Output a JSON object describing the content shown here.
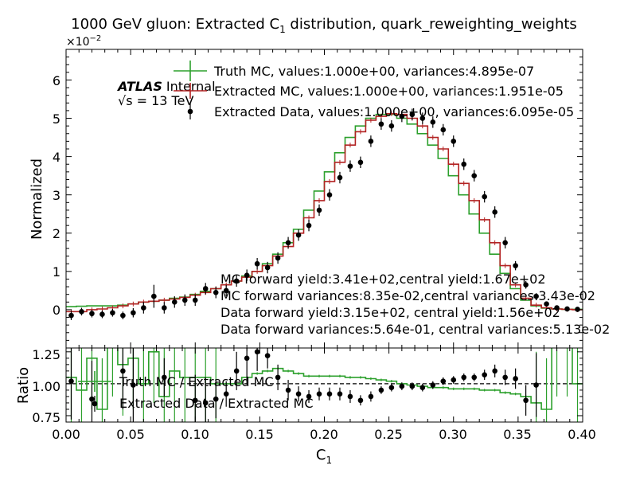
{
  "chart_data": {
    "type": "line",
    "title_pre": "1000 GeV gluon: Extracted C",
    "title_sub": "1",
    "title_post": " distribution, quark_reweighting_weights",
    "xlabel_main": "C",
    "xlabel_sub": "1",
    "ylabel_top": "Normalized",
    "ylabel_bottom": "Ratio",
    "y_multiplier_base": "×10",
    "y_multiplier_exp": "−2",
    "atlas_label": "ATLAS",
    "atlas_sub": "Internal",
    "energy_label": "√s = 13 TeV",
    "xlim": [
      0.0,
      0.4
    ],
    "ylim_top": [
      -1,
      6.8
    ],
    "ylim_bottom": [
      0.7,
      1.28
    ],
    "xticks": [
      "0.00",
      "0.05",
      "0.10",
      "0.15",
      "0.20",
      "0.25",
      "0.30",
      "0.35",
      "0.40"
    ],
    "yticks_top": [
      "0",
      "1",
      "2",
      "3",
      "4",
      "5",
      "6"
    ],
    "yticks_bottom": [
      "0.75",
      "1.00",
      "1.25"
    ],
    "ratio_reference": 1.0,
    "legend_top": {
      "truth": "Truth MC, values:1.000e+00, variances:4.895e-07",
      "extracted_mc": "Extracted MC, values:1.000e+00, variances:1.951e-05",
      "extracted_data": "Extracted Data, values:1.000e+00, variances:6.095e-05"
    },
    "legend_bottom": {
      "truth_ratio": "Truth MC / Extracted MC",
      "data_ratio": "Extracted Data / Extracted MC"
    },
    "annotations": [
      "MC forward yield:3.41e+02,central yield:1.67e+02",
      "MC forward variances:8.35e-02,central variances:3.43e-02",
      "Data forward yield:3.15e+02, central yield:1.56e+02",
      "Data forward variances:5.64e-01, central variances:5.13e-02"
    ],
    "colors": {
      "truth": "#2ca02c",
      "extracted_mc": "#b22222",
      "data": "#000000"
    },
    "bin_edges": [
      0.0,
      0.008,
      0.016,
      0.024,
      0.032,
      0.04,
      0.048,
      0.056,
      0.064,
      0.072,
      0.08,
      0.088,
      0.096,
      0.104,
      0.112,
      0.12,
      0.128,
      0.136,
      0.144,
      0.152,
      0.16,
      0.168,
      0.176,
      0.184,
      0.192,
      0.2,
      0.208,
      0.216,
      0.224,
      0.232,
      0.24,
      0.248,
      0.256,
      0.264,
      0.272,
      0.28,
      0.288,
      0.296,
      0.304,
      0.312,
      0.32,
      0.328,
      0.336,
      0.344,
      0.352,
      0.36,
      0.368,
      0.376,
      0.384,
      0.392,
      0.4
    ],
    "series": [
      {
        "name": "Truth MC, values:1.000e+00, variances:4.895e-07",
        "values": [
          0.08,
          0.09,
          0.1,
          0.1,
          0.1,
          0.12,
          0.15,
          0.2,
          0.22,
          0.25,
          0.3,
          0.33,
          0.4,
          0.48,
          0.55,
          0.65,
          0.75,
          0.88,
          1.0,
          1.2,
          1.45,
          1.75,
          2.1,
          2.6,
          3.1,
          3.6,
          4.1,
          4.5,
          4.8,
          5.0,
          5.1,
          5.1,
          5.0,
          4.85,
          4.6,
          4.3,
          3.95,
          3.5,
          3.0,
          2.5,
          2.0,
          1.45,
          0.95,
          0.55,
          0.25,
          0.1,
          0.04,
          0.02,
          0.01,
          0.01
        ]
      },
      {
        "name": "Extracted MC, values:1.000e+00, variances:1.951e-05",
        "values": [
          -0.05,
          -0.05,
          0.0,
          0.02,
          0.05,
          0.1,
          0.15,
          0.2,
          0.22,
          0.25,
          0.28,
          0.32,
          0.38,
          0.45,
          0.55,
          0.65,
          0.75,
          0.85,
          1.0,
          1.15,
          1.4,
          1.65,
          2.0,
          2.4,
          2.85,
          3.35,
          3.85,
          4.3,
          4.65,
          4.95,
          5.05,
          5.12,
          5.1,
          5.0,
          4.8,
          4.5,
          4.2,
          3.8,
          3.3,
          2.85,
          2.35,
          1.75,
          1.15,
          0.65,
          0.3,
          0.12,
          0.05,
          0.02,
          0.01,
          0.0
        ]
      },
      {
        "name": "Extracted Data, values:1.000e+00, variances:6.095e-05",
        "x": [
          0.004,
          0.012,
          0.02,
          0.028,
          0.036,
          0.044,
          0.052,
          0.06,
          0.068,
          0.076,
          0.084,
          0.092,
          0.1,
          0.108,
          0.116,
          0.124,
          0.132,
          0.14,
          0.148,
          0.156,
          0.164,
          0.172,
          0.18,
          0.188,
          0.196,
          0.204,
          0.212,
          0.22,
          0.228,
          0.236,
          0.244,
          0.252,
          0.26,
          0.268,
          0.276,
          0.284,
          0.292,
          0.3,
          0.308,
          0.316,
          0.324,
          0.332,
          0.34,
          0.348,
          0.356,
          0.364,
          0.372,
          0.38,
          0.388,
          0.396
        ],
        "values": [
          -0.15,
          -0.05,
          -0.1,
          -0.12,
          -0.08,
          -0.15,
          -0.08,
          0.05,
          0.35,
          0.05,
          0.2,
          0.25,
          0.25,
          0.55,
          0.45,
          0.5,
          0.75,
          0.9,
          1.2,
          1.1,
          1.35,
          1.75,
          1.95,
          2.2,
          2.6,
          3.0,
          3.45,
          3.75,
          3.85,
          4.4,
          4.85,
          4.8,
          5.05,
          5.1,
          5.0,
          4.9,
          4.7,
          4.4,
          3.8,
          3.5,
          2.95,
          2.55,
          1.75,
          1.15,
          0.65,
          0.35,
          0.15,
          0.05,
          0.02,
          0.01
        ],
        "errors": [
          0.12,
          0.1,
          0.1,
          0.1,
          0.1,
          0.1,
          0.12,
          0.15,
          0.3,
          0.15,
          0.15,
          0.15,
          0.15,
          0.15,
          0.15,
          0.15,
          0.15,
          0.15,
          0.15,
          0.15,
          0.15,
          0.15,
          0.15,
          0.15,
          0.15,
          0.15,
          0.15,
          0.15,
          0.15,
          0.15,
          0.15,
          0.15,
          0.15,
          0.15,
          0.15,
          0.15,
          0.15,
          0.15,
          0.15,
          0.15,
          0.15,
          0.15,
          0.15,
          0.12,
          0.1,
          0.08,
          0.06,
          0.04,
          0.03,
          0.02
        ]
      },
      {
        "name": "Truth MC / Extracted MC",
        "values": [
          1.05,
          0.95,
          1.2,
          0.8,
          1.3,
          1.15,
          1.2,
          1.0,
          1.25,
          0.9,
          1.1,
          1.05,
          1.05,
          1.05,
          1.0,
          1.0,
          1.0,
          1.05,
          1.08,
          1.1,
          1.12,
          1.1,
          1.08,
          1.06,
          1.06,
          1.06,
          1.06,
          1.05,
          1.05,
          1.04,
          1.03,
          1.02,
          1.0,
          0.99,
          0.98,
          0.97,
          0.97,
          0.96,
          0.96,
          0.96,
          0.95,
          0.95,
          0.93,
          0.92,
          0.9,
          0.85,
          0.8,
          1.3,
          1.3,
          1.0
        ]
      },
      {
        "name": "Extracted Data / Extracted MC",
        "x": [
          0.004,
          0.02,
          0.044,
          0.052,
          0.076,
          0.1,
          0.108,
          0.116,
          0.124,
          0.132,
          0.14,
          0.148,
          0.156,
          0.164,
          0.172,
          0.18,
          0.188,
          0.196,
          0.204,
          0.212,
          0.22,
          0.228,
          0.236,
          0.244,
          0.252,
          0.26,
          0.268,
          0.276,
          0.284,
          0.292,
          0.3,
          0.308,
          0.316,
          0.324,
          0.332,
          0.34,
          0.348,
          0.356,
          0.364
        ],
        "values": [
          1.02,
          0.88,
          1.1,
          0.99,
          1.05,
          0.87,
          0.85,
          0.88,
          0.92,
          1.1,
          1.2,
          1.25,
          1.22,
          1.05,
          0.95,
          0.92,
          0.9,
          0.92,
          0.92,
          0.92,
          0.9,
          0.87,
          0.9,
          0.95,
          0.97,
          0.98,
          0.98,
          0.97,
          0.99,
          1.02,
          1.03,
          1.05,
          1.05,
          1.07,
          1.1,
          1.05,
          1.04,
          0.87,
          0.99
        ],
        "errors": [
          0.3,
          0.3,
          0.3,
          0.3,
          0.15,
          0.2,
          0.15,
          0.15,
          0.1,
          0.15,
          0.2,
          0.15,
          0.1,
          0.1,
          0.08,
          0.06,
          0.05,
          0.05,
          0.05,
          0.05,
          0.05,
          0.04,
          0.04,
          0.03,
          0.03,
          0.03,
          0.03,
          0.03,
          0.03,
          0.03,
          0.03,
          0.03,
          0.03,
          0.04,
          0.05,
          0.06,
          0.08,
          0.12,
          0.25
        ]
      }
    ]
  }
}
